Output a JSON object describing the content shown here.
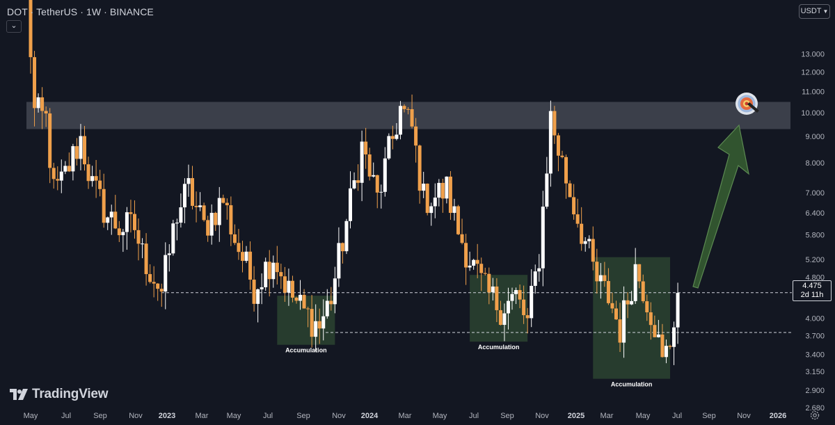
{
  "header": {
    "title": "DOT · TetherUS · 1W · BINANCE",
    "collapse_icon": "chevron-down-icon"
  },
  "currency_button": {
    "label": "USDT",
    "icon": "chevron-down-icon"
  },
  "price_tag": {
    "price": "4.475",
    "countdown": "2d 11h"
  },
  "logo": {
    "text": "TradingView",
    "icon": "tradingview-logo-icon"
  },
  "settings_icon": "gear-icon",
  "target_icon": "bullseye-icon",
  "colors": {
    "background": "#131722",
    "up": "#ffffff",
    "down": "#f0a04b",
    "resistance_zone": "#5d606b",
    "accumulation_box": "#2f4a33",
    "arrow": "#31542f",
    "axis_text": "#b2b5be"
  },
  "chart_data": {
    "type": "candlestick",
    "symbol": "DOT",
    "pair": "TetherUS",
    "interval": "1W",
    "exchange": "BINANCE",
    "y_scale": "log",
    "ylim": [
      2.6,
      17.5
    ],
    "y_ticks": [
      "13.000",
      "12.000",
      "11.000",
      "10.000",
      "9.000",
      "8.000",
      "7.000",
      "6.400",
      "5.800",
      "5.200",
      "4.800",
      "4.000",
      "3.700",
      "3.400",
      "3.150",
      "2.900",
      "2.680"
    ],
    "x_ticks": [
      "May",
      "Jul",
      "Sep",
      "Nov",
      "2023",
      "Mar",
      "May",
      "Jul",
      "Sep",
      "Nov",
      "2024",
      "Mar",
      "May",
      "Jul",
      "Sep",
      "Nov",
      "2025",
      "Mar",
      "May",
      "Jul",
      "Sep",
      "Nov",
      "2026"
    ],
    "x_range": [
      "2022-05-02",
      "2026-01-19"
    ],
    "last_price": 4.475,
    "support_line": 4.48,
    "lower_support_line": 3.75,
    "resistance_zone": [
      9.3,
      10.5
    ],
    "accumulation_zones": [
      {
        "label": "Accumulation",
        "from": "2023-07-24",
        "to": "2023-11-06",
        "low": 3.55,
        "high": 4.42
      },
      {
        "label": "Accumulation",
        "from": "2024-07-08",
        "to": "2024-10-21",
        "low": 3.6,
        "high": 4.85
      },
      {
        "label": "Accumulation",
        "from": "2025-02-17",
        "to": "2025-07-07",
        "low": 3.05,
        "high": 5.25
      }
    ],
    "projection_target": 9.7,
    "waypoints": [
      [
        "2022-04-25",
        17.5
      ],
      [
        "2022-05-09",
        10.0
      ],
      [
        "2022-05-30",
        9.7
      ],
      [
        "2022-06-13",
        7.0
      ],
      [
        "2022-06-27",
        7.3
      ],
      [
        "2022-08-01",
        8.9
      ],
      [
        "2022-08-22",
        7.2
      ],
      [
        "2022-09-19",
        6.3
      ],
      [
        "2022-10-10",
        6.0
      ],
      [
        "2022-11-07",
        6.0
      ],
      [
        "2022-11-21",
        5.3
      ],
      [
        "2022-12-26",
        4.5
      ],
      [
        "2023-01-23",
        6.4
      ],
      [
        "2023-02-13",
        7.1
      ],
      [
        "2023-03-13",
        6.0
      ],
      [
        "2023-04-17",
        6.8
      ],
      [
        "2023-05-08",
        5.7
      ],
      [
        "2023-06-12",
        4.6
      ],
      [
        "2023-07-17",
        5.3
      ],
      [
        "2023-08-14",
        4.5
      ],
      [
        "2023-09-11",
        4.1
      ],
      [
        "2023-10-09",
        3.85
      ],
      [
        "2023-10-30",
        4.4
      ],
      [
        "2023-11-13",
        5.2
      ],
      [
        "2023-12-25",
        8.6
      ],
      [
        "2024-01-22",
        6.8
      ],
      [
        "2024-03-04",
        10.2
      ],
      [
        "2024-03-25",
        9.3
      ],
      [
        "2024-04-15",
        6.8
      ],
      [
        "2024-05-06",
        6.9
      ],
      [
        "2024-05-27",
        7.1
      ],
      [
        "2024-06-17",
        5.9
      ],
      [
        "2024-07-08",
        5.2
      ],
      [
        "2024-08-05",
        4.5
      ],
      [
        "2024-09-02",
        4.2
      ],
      [
        "2024-09-30",
        4.4
      ],
      [
        "2024-10-21",
        3.9
      ],
      [
        "2024-11-11",
        5.3
      ],
      [
        "2024-12-02",
        9.8
      ],
      [
        "2024-12-16",
        8.5
      ],
      [
        "2025-01-06",
        7.0
      ],
      [
        "2025-02-03",
        5.6
      ],
      [
        "2025-02-24",
        4.7
      ],
      [
        "2025-03-17",
        4.4
      ],
      [
        "2025-04-07",
        3.8
      ],
      [
        "2025-05-05",
        5.0
      ],
      [
        "2025-05-19",
        4.6
      ],
      [
        "2025-06-09",
        3.9
      ],
      [
        "2025-06-23",
        3.25
      ],
      [
        "2025-07-07",
        3.6
      ],
      [
        "2025-07-21",
        4.475
      ]
    ],
    "annotations": [
      "Accumulation",
      "Accumulation",
      "Accumulation"
    ]
  }
}
